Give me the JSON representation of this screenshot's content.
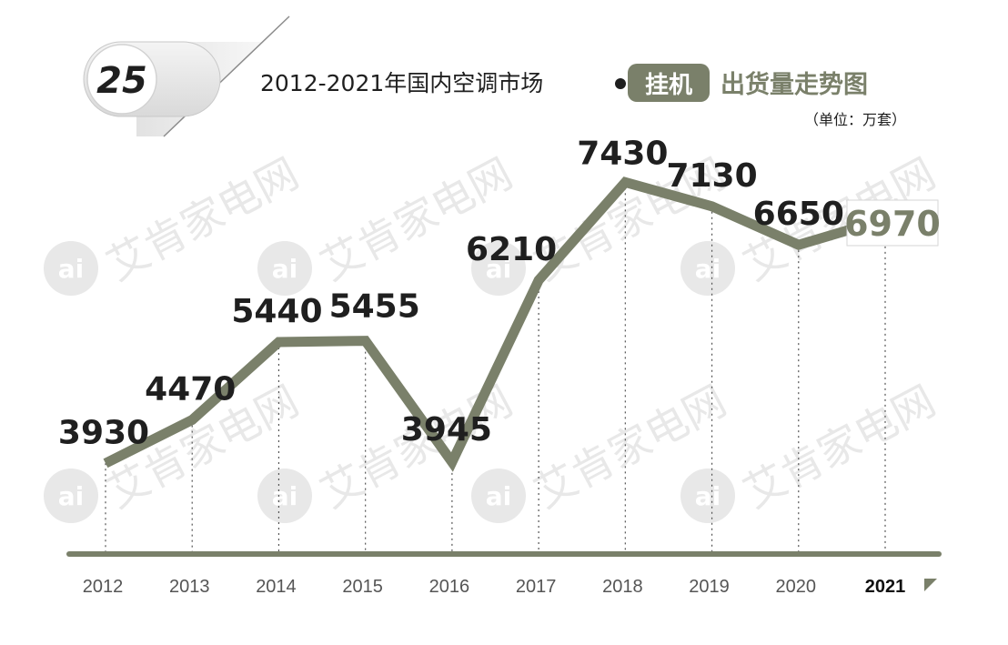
{
  "header": {
    "badge_number": "25",
    "title_prefix": "2012-2021年国内空调市场",
    "highlight_label": "挂机",
    "title_suffix": "出货量走势图",
    "unit": "（单位：万套）"
  },
  "watermark": {
    "text": "艾肯家电网",
    "logo_glyph": "ai"
  },
  "colors": {
    "line": "#7a806a",
    "badge_bg": "#7a806a",
    "axis": "#7a806a",
    "text": "#1f1f1f",
    "tick": "#555555",
    "highlight_value": "#7a806a",
    "watermark": "#e8e8e8"
  },
  "chart_data": {
    "type": "line",
    "title": "2012-2021年国内空调市场挂机出货量走势图",
    "ylabel": "（单位：万套）",
    "categories": [
      "2012",
      "2013",
      "2014",
      "2015",
      "2016",
      "2017",
      "2018",
      "2019",
      "2020",
      "2021"
    ],
    "values": [
      3930,
      4470,
      5440,
      5455,
      3945,
      6210,
      7430,
      7130,
      6650,
      6970
    ],
    "value_labels": [
      "3930",
      "4470",
      "5440",
      "5455",
      "3945",
      "6210",
      "7430",
      "7130",
      "6650",
      "6970"
    ],
    "ylim": [
      2800,
      8000
    ],
    "grid": false,
    "legend": "none",
    "highlight_index": 9
  }
}
